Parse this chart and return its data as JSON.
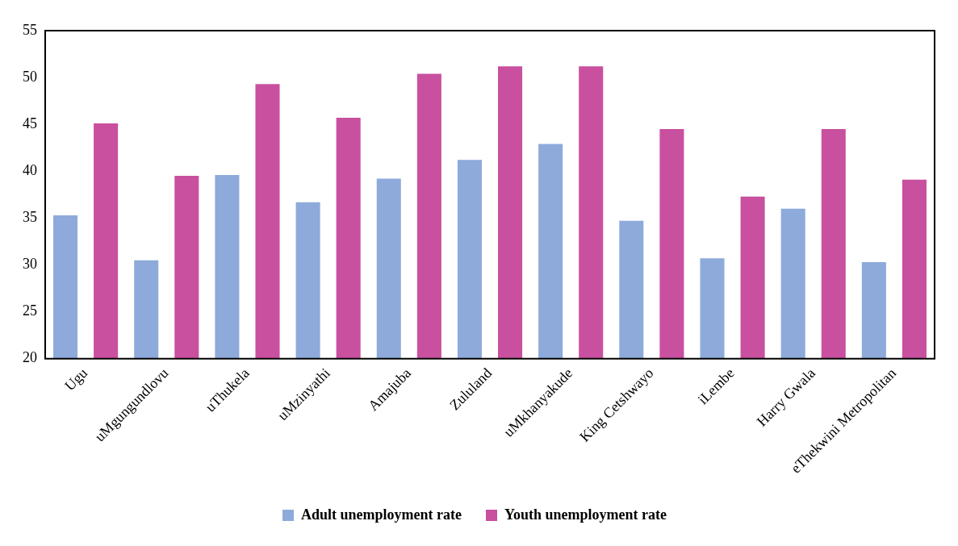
{
  "chart_data": {
    "type": "bar",
    "categories": [
      "Ugu",
      "uMgungundlovu",
      "uThukela",
      "uMzinyathi",
      "Amajuba",
      "Zululand",
      "uMkhanyakude",
      "King Cetshwayo",
      "iLembe",
      "Harry Gwala",
      "eThekwini Metropolitan"
    ],
    "series": [
      {
        "name": "Adult unemployment rate",
        "color": "#8eaadb",
        "values": [
          35.3,
          30.5,
          39.6,
          36.7,
          39.2,
          41.2,
          42.9,
          34.7,
          30.7,
          36.0,
          30.3
        ]
      },
      {
        "name": "Youth unemployment rate",
        "color": "#c9509f",
        "values": [
          45.1,
          39.5,
          49.3,
          45.7,
          50.4,
          51.2,
          51.2,
          44.5,
          37.3,
          44.5,
          39.1
        ]
      }
    ],
    "ylim": [
      20,
      55
    ],
    "yticks": [
      20,
      25,
      30,
      35,
      40,
      45,
      50,
      55
    ],
    "grid": false,
    "legend": "bottom"
  }
}
